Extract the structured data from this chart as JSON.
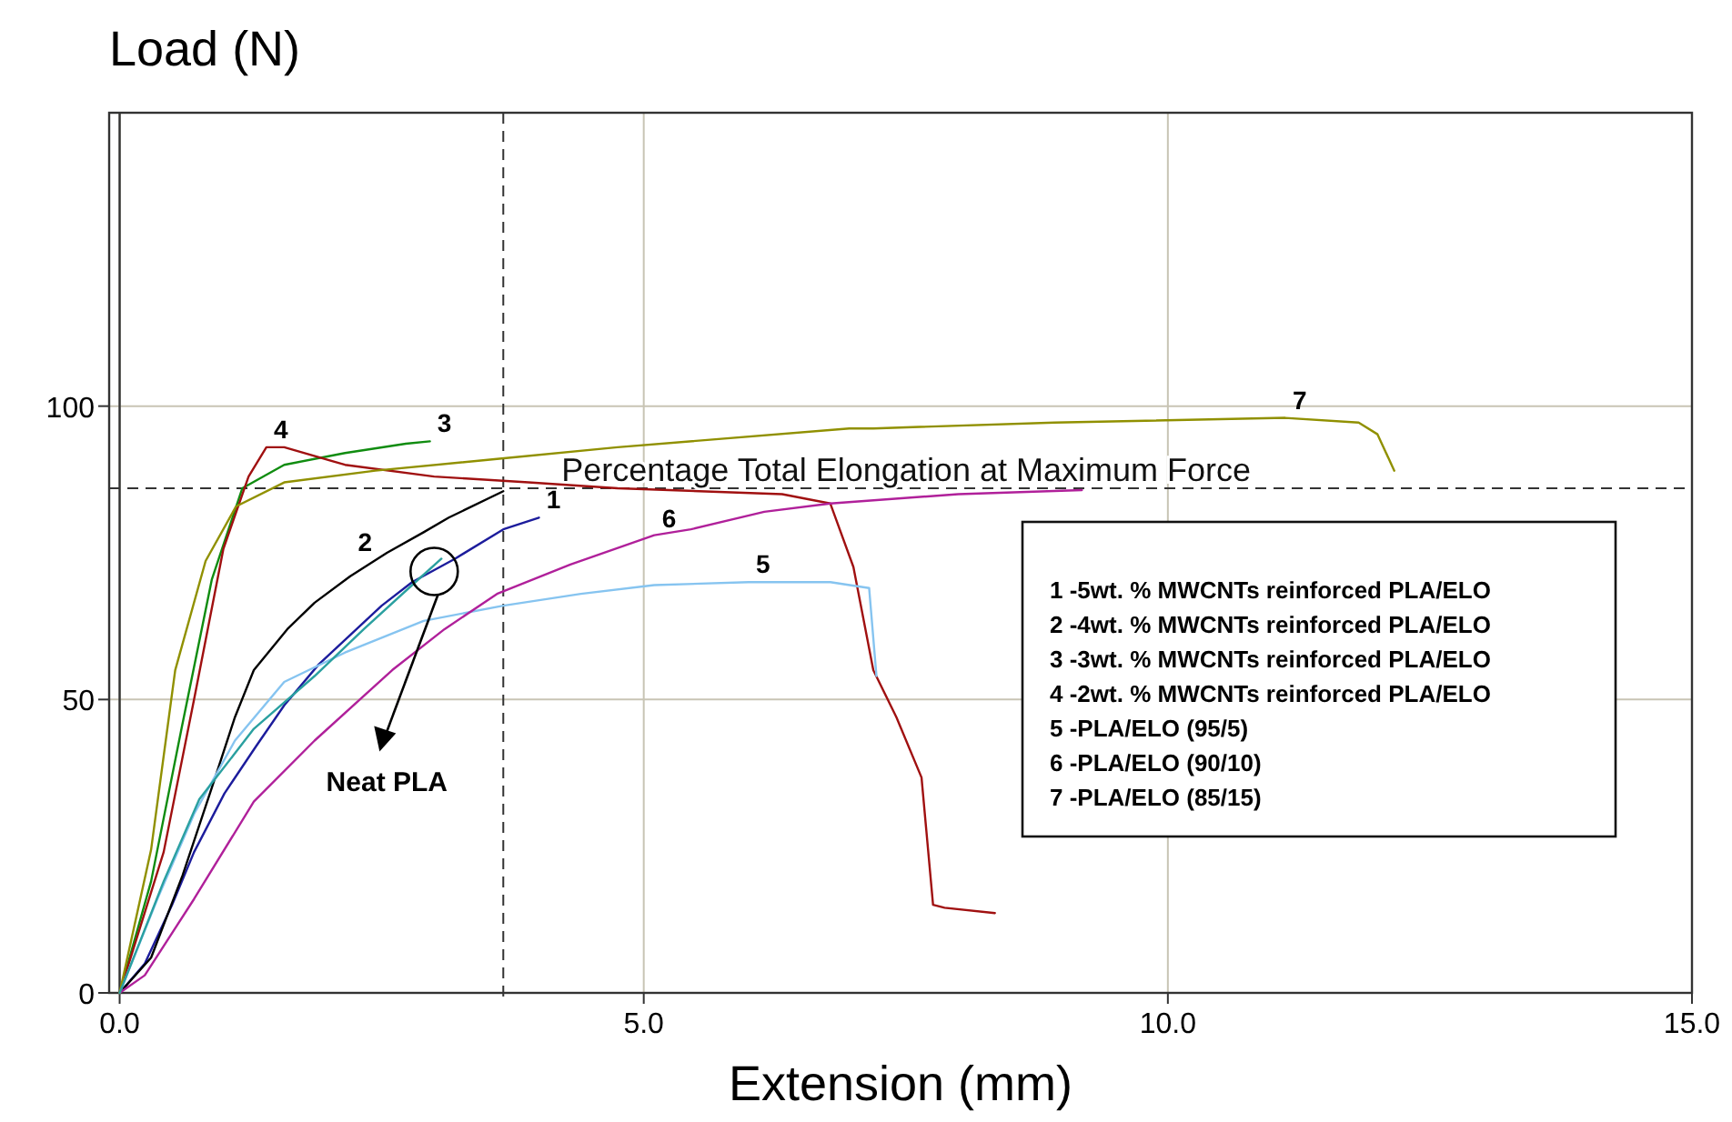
{
  "chart_data": {
    "type": "line",
    "xlabel": "Extension (mm)",
    "ylabel": "Load (N)",
    "xlim": [
      -0.1,
      15
    ],
    "ylim": [
      0,
      150
    ],
    "xticks": [
      {
        "value": 0,
        "label": "0.0"
      },
      {
        "value": 5,
        "label": "5.0"
      },
      {
        "value": 10,
        "label": "10.0"
      },
      {
        "value": 15,
        "label": "15.0"
      }
    ],
    "yticks": [
      0,
      50,
      100
    ],
    "grid": true,
    "marker": "none",
    "line_style": "solid",
    "series": [
      {
        "name": "1",
        "color": "#1c1c9c",
        "x": [
          0,
          0.24,
          0.5,
          0.71,
          1.0,
          1.3,
          1.57,
          1.9,
          2.2,
          2.5,
          2.79,
          3.2,
          3.66,
          4.0
        ],
        "values": [
          0,
          5,
          15,
          24,
          34,
          42,
          49,
          56,
          61,
          66,
          70,
          74,
          79,
          81
        ]
      },
      {
        "name": "2",
        "color": "#000000",
        "x": [
          0,
          0.3,
          0.6,
          0.88,
          1.1,
          1.28,
          1.6,
          1.86,
          2.2,
          2.55,
          2.9,
          3.14,
          3.66
        ],
        "values": [
          0,
          6,
          20,
          35,
          47,
          55,
          62,
          66.5,
          71,
          75,
          78.5,
          81,
          85.5
        ]
      },
      {
        "name": "3",
        "color": "#108c10",
        "x": [
          0,
          0.3,
          0.59,
          0.88,
          1.17,
          1.57,
          2.15,
          2.73,
          2.96
        ],
        "values": [
          0,
          19,
          45,
          70.5,
          86,
          90,
          92,
          93.6,
          94
        ]
      },
      {
        "name": "4",
        "color": "#a01010",
        "x": [
          0,
          0.42,
          0.71,
          0.99,
          1.23,
          1.4,
          1.57,
          2.15,
          3.0,
          3.9,
          4.75,
          6.32,
          6.78,
          7.0,
          7.19,
          7.41,
          7.65,
          7.76,
          7.87,
          8.35
        ],
        "values": [
          0,
          24,
          50,
          75.7,
          88,
          93,
          93,
          90,
          88,
          87,
          86,
          85,
          83.4,
          72.6,
          55,
          47,
          36.7,
          15,
          14.5,
          13.6
        ]
      },
      {
        "name": "5",
        "color": "#86c4f0",
        "x": [
          0,
          0.36,
          0.71,
          1.1,
          1.57,
          2.15,
          2.9,
          3.66,
          4.4,
          5.1,
          6.0,
          6.78,
          7.15,
          7.22
        ],
        "values": [
          0,
          16,
          30.5,
          43,
          53,
          58,
          63.4,
          66,
          68,
          69.5,
          70,
          70,
          69,
          54
        ]
      },
      {
        "name": "6",
        "color": "#b0209a",
        "x": [
          0,
          0.24,
          0.71,
          1.28,
          1.86,
          2.6,
          3.1,
          3.6,
          4.3,
          5.1,
          5.45,
          6.15,
          6.78,
          8.0,
          9.18
        ],
        "values": [
          0,
          3,
          16,
          32.6,
          43,
          55,
          62,
          68,
          73,
          78,
          79,
          82,
          83.4,
          85,
          85.7
        ]
      },
      {
        "name": "7",
        "color": "#909000",
        "x": [
          0,
          0.3,
          0.53,
          0.82,
          1.11,
          1.57,
          2.44,
          3.6,
          4.75,
          6.96,
          7.19,
          8.92,
          11.12,
          11.82,
          12.0,
          12.16
        ],
        "values": [
          0,
          24.4,
          55,
          73.6,
          82.9,
          87,
          89,
          91,
          93,
          96.2,
          96.2,
          97.2,
          98,
          97.2,
          95.2,
          89
        ]
      },
      {
        "color": "#2aa0a0",
        "x": [
          0,
          0.2,
          0.42,
          0.76,
          1.28,
          1.86,
          2.33,
          2.79,
          3.07
        ],
        "values": [
          0,
          9,
          19,
          33,
          45,
          54,
          62,
          69.5,
          74
        ]
      }
    ],
    "ref_lines": [
      {
        "axis": "y",
        "value": 86,
        "label": "Percentage Total Elongation at Maximum Force",
        "line_style": "dashed",
        "color": "#333333"
      },
      {
        "axis": "x",
        "value": 3.66,
        "line_style": "dashed",
        "color": "#333333"
      }
    ],
    "annotations": [
      "1 -5wt. % MWCNTs reinforced PLA/ELO",
      "2 -4wt. % MWCNTs reinforced PLA/ELO",
      "3 -3wt. % MWCNTs reinforced PLA/ELO",
      "4 -2wt. % MWCNTs reinforced PLA/ELO",
      "5 -PLA/ELO (95/5)",
      "6 -PLA/ELO (90/10)",
      "7 -PLA/ELO (85/15)",
      "Neat PLA"
    ]
  }
}
